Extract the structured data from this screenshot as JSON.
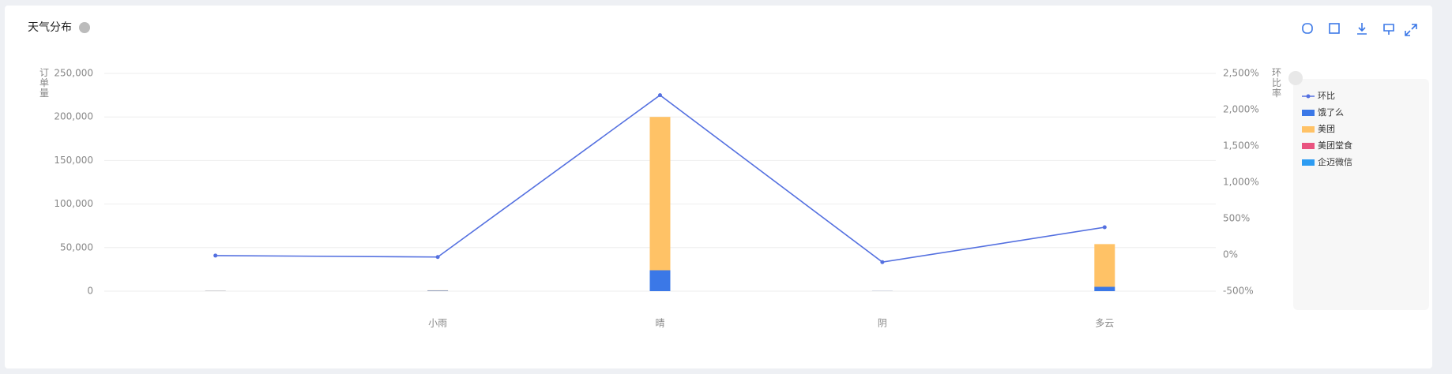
{
  "chart_data": {
    "type": "bar-line",
    "title": "天气分布",
    "y_label": "订单量",
    "y2_label": "环比率",
    "categories": [
      null,
      "小雨",
      "晴",
      "阴",
      "多云"
    ],
    "series": [
      {
        "name": "环比",
        "type": "line",
        "axis": "y2",
        "color": "#5470e0",
        "values": [
          -10,
          -30,
          2200,
          -100,
          380
        ]
      },
      {
        "name": "饿了么",
        "color": "#3b78e7",
        "values": [
          300,
          600,
          24000,
          200,
          5000
        ]
      },
      {
        "name": "美团",
        "color": "#ffc266",
        "values": [
          200,
          400,
          176000,
          100,
          49000
        ]
      },
      {
        "name": "美团堂食",
        "color": "#e9537f",
        "values": [
          0,
          0,
          0,
          0,
          0
        ]
      },
      {
        "name": "企迈微信",
        "color": "#2d9cf2",
        "values": [
          0,
          0,
          0,
          0,
          0
        ]
      }
    ],
    "ylim": [
      0,
      250000
    ],
    "yticks": [
      0,
      {
        "value": 50000,
        "label": "50,000"
      },
      {
        "value": 100000,
        "label": "100,000"
      },
      {
        "value": 150000,
        "label": "150,000"
      },
      {
        "value": 200000,
        "label": "200,000"
      },
      {
        "value": 250000,
        "label": "250,000"
      }
    ],
    "y2lim": [
      -500,
      2500
    ],
    "y2ticks": [
      {
        "value": -500,
        "label": "-500%"
      },
      {
        "value": 0,
        "label": "0%"
      },
      {
        "value": 500,
        "label": "500%"
      },
      {
        "value": 1000,
        "label": "1,000%"
      },
      {
        "value": 1500,
        "label": "1,500%"
      },
      {
        "value": 2000,
        "label": "2,000%"
      },
      {
        "value": 2500,
        "label": "2,500%"
      }
    ],
    "grid": true
  }
}
